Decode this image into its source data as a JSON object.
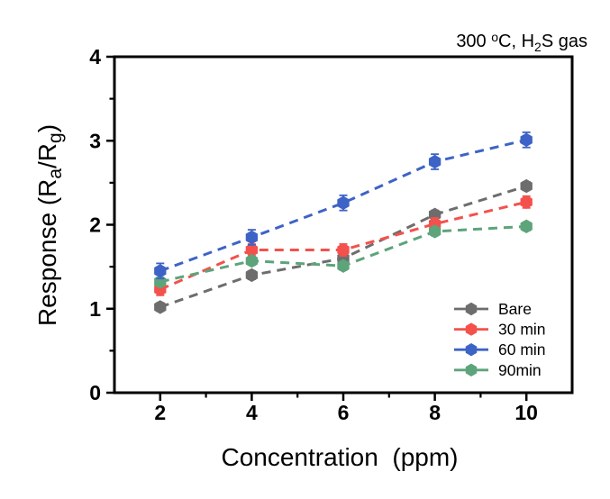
{
  "page": {
    "background": "#ffffff"
  },
  "chart_data": {
    "type": "line",
    "title": "",
    "annotation": "300 °C, H2S gas",
    "annotation_parts": [
      {
        "text": "300 "
      },
      {
        "text": "o",
        "sup": true
      },
      {
        "text": "C, H"
      },
      {
        "text": "2",
        "sub": true
      },
      {
        "text": "S gas"
      }
    ],
    "xlabel": "Concentration  (ppm)",
    "ylabel": "Response (Ra/Rg)",
    "ylabel_parts": [
      {
        "text": "Response (R"
      },
      {
        "text": "a",
        "sub": true
      },
      {
        "text": "/R"
      },
      {
        "text": "g",
        "sub": true
      },
      {
        "text": ")"
      }
    ],
    "x": [
      2,
      4,
      6,
      8,
      10
    ],
    "xlim": [
      1,
      11
    ],
    "ylim": [
      0,
      4
    ],
    "x_major_ticks": [
      2,
      4,
      6,
      8,
      10
    ],
    "x_minor_ticks": [
      3,
      5,
      7,
      9
    ],
    "y_major_ticks": [
      0,
      1,
      2,
      3,
      4
    ],
    "y_minor_ticks": [
      0.5,
      1.5,
      2.5,
      3.5
    ],
    "grid": false,
    "line_style": "dashed",
    "marker": "hexagon",
    "legend_position": "lower-right",
    "axis_color": "#000000",
    "series": [
      {
        "name": "Bare",
        "color": "#6d6d6d",
        "values": [
          1.02,
          1.4,
          1.6,
          2.12,
          2.46
        ],
        "err": 0.05
      },
      {
        "name": "30 min",
        "color": "#f4514c",
        "values": [
          1.23,
          1.7,
          1.7,
          2.01,
          2.27
        ],
        "err": 0.07
      },
      {
        "name": "60 min",
        "color": "#3e63c6",
        "values": [
          1.45,
          1.85,
          2.26,
          2.75,
          3.01
        ],
        "err": 0.09
      },
      {
        "name": "90min",
        "color": "#5da47a",
        "values": [
          1.32,
          1.57,
          1.51,
          1.92,
          1.98
        ],
        "err": 0.05
      }
    ],
    "draw_order": [
      0,
      1,
      3,
      2
    ]
  }
}
